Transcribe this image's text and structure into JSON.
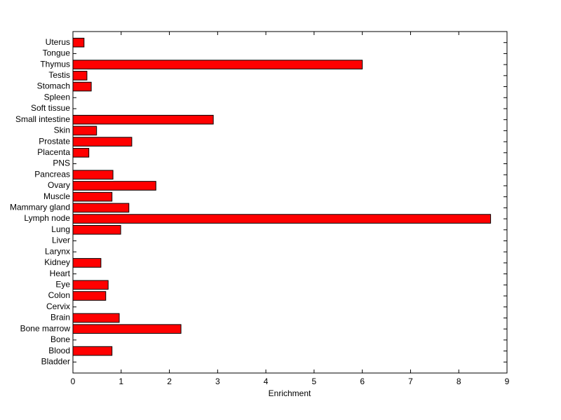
{
  "chart_data": {
    "type": "barh",
    "x_label": "Enrichment",
    "categories": [
      "Bladder",
      "Blood",
      "Bone",
      "Bone marrow",
      "Brain",
      "Cervix",
      "Colon",
      "Eye",
      "Heart",
      "Kidney",
      "Larynx",
      "Liver",
      "Lung",
      "Lymph node",
      "Mammary gland",
      "Muscle",
      "Ovary",
      "Pancreas",
      "PNS",
      "Placenta",
      "Prostate",
      "Skin",
      "Small intestine",
      "Soft tissue",
      "Spleen",
      "Stomach",
      "Testis",
      "Thymus",
      "Tongue",
      "Uterus"
    ],
    "values": [
      0,
      0.81,
      0,
      2.24,
      0.96,
      0,
      0.68,
      0.73,
      0,
      0.58,
      0,
      0,
      0.99,
      8.66,
      1.16,
      0.81,
      1.72,
      0.83,
      0,
      0.33,
      1.22,
      0.49,
      2.91,
      0,
      0,
      0.38,
      0.29,
      6.0,
      0,
      0.23
    ],
    "color": "#ff0000",
    "xlim": [
      0,
      9
    ],
    "xticks": [
      0,
      1,
      2,
      3,
      4,
      5,
      6,
      7,
      8,
      9
    ]
  }
}
